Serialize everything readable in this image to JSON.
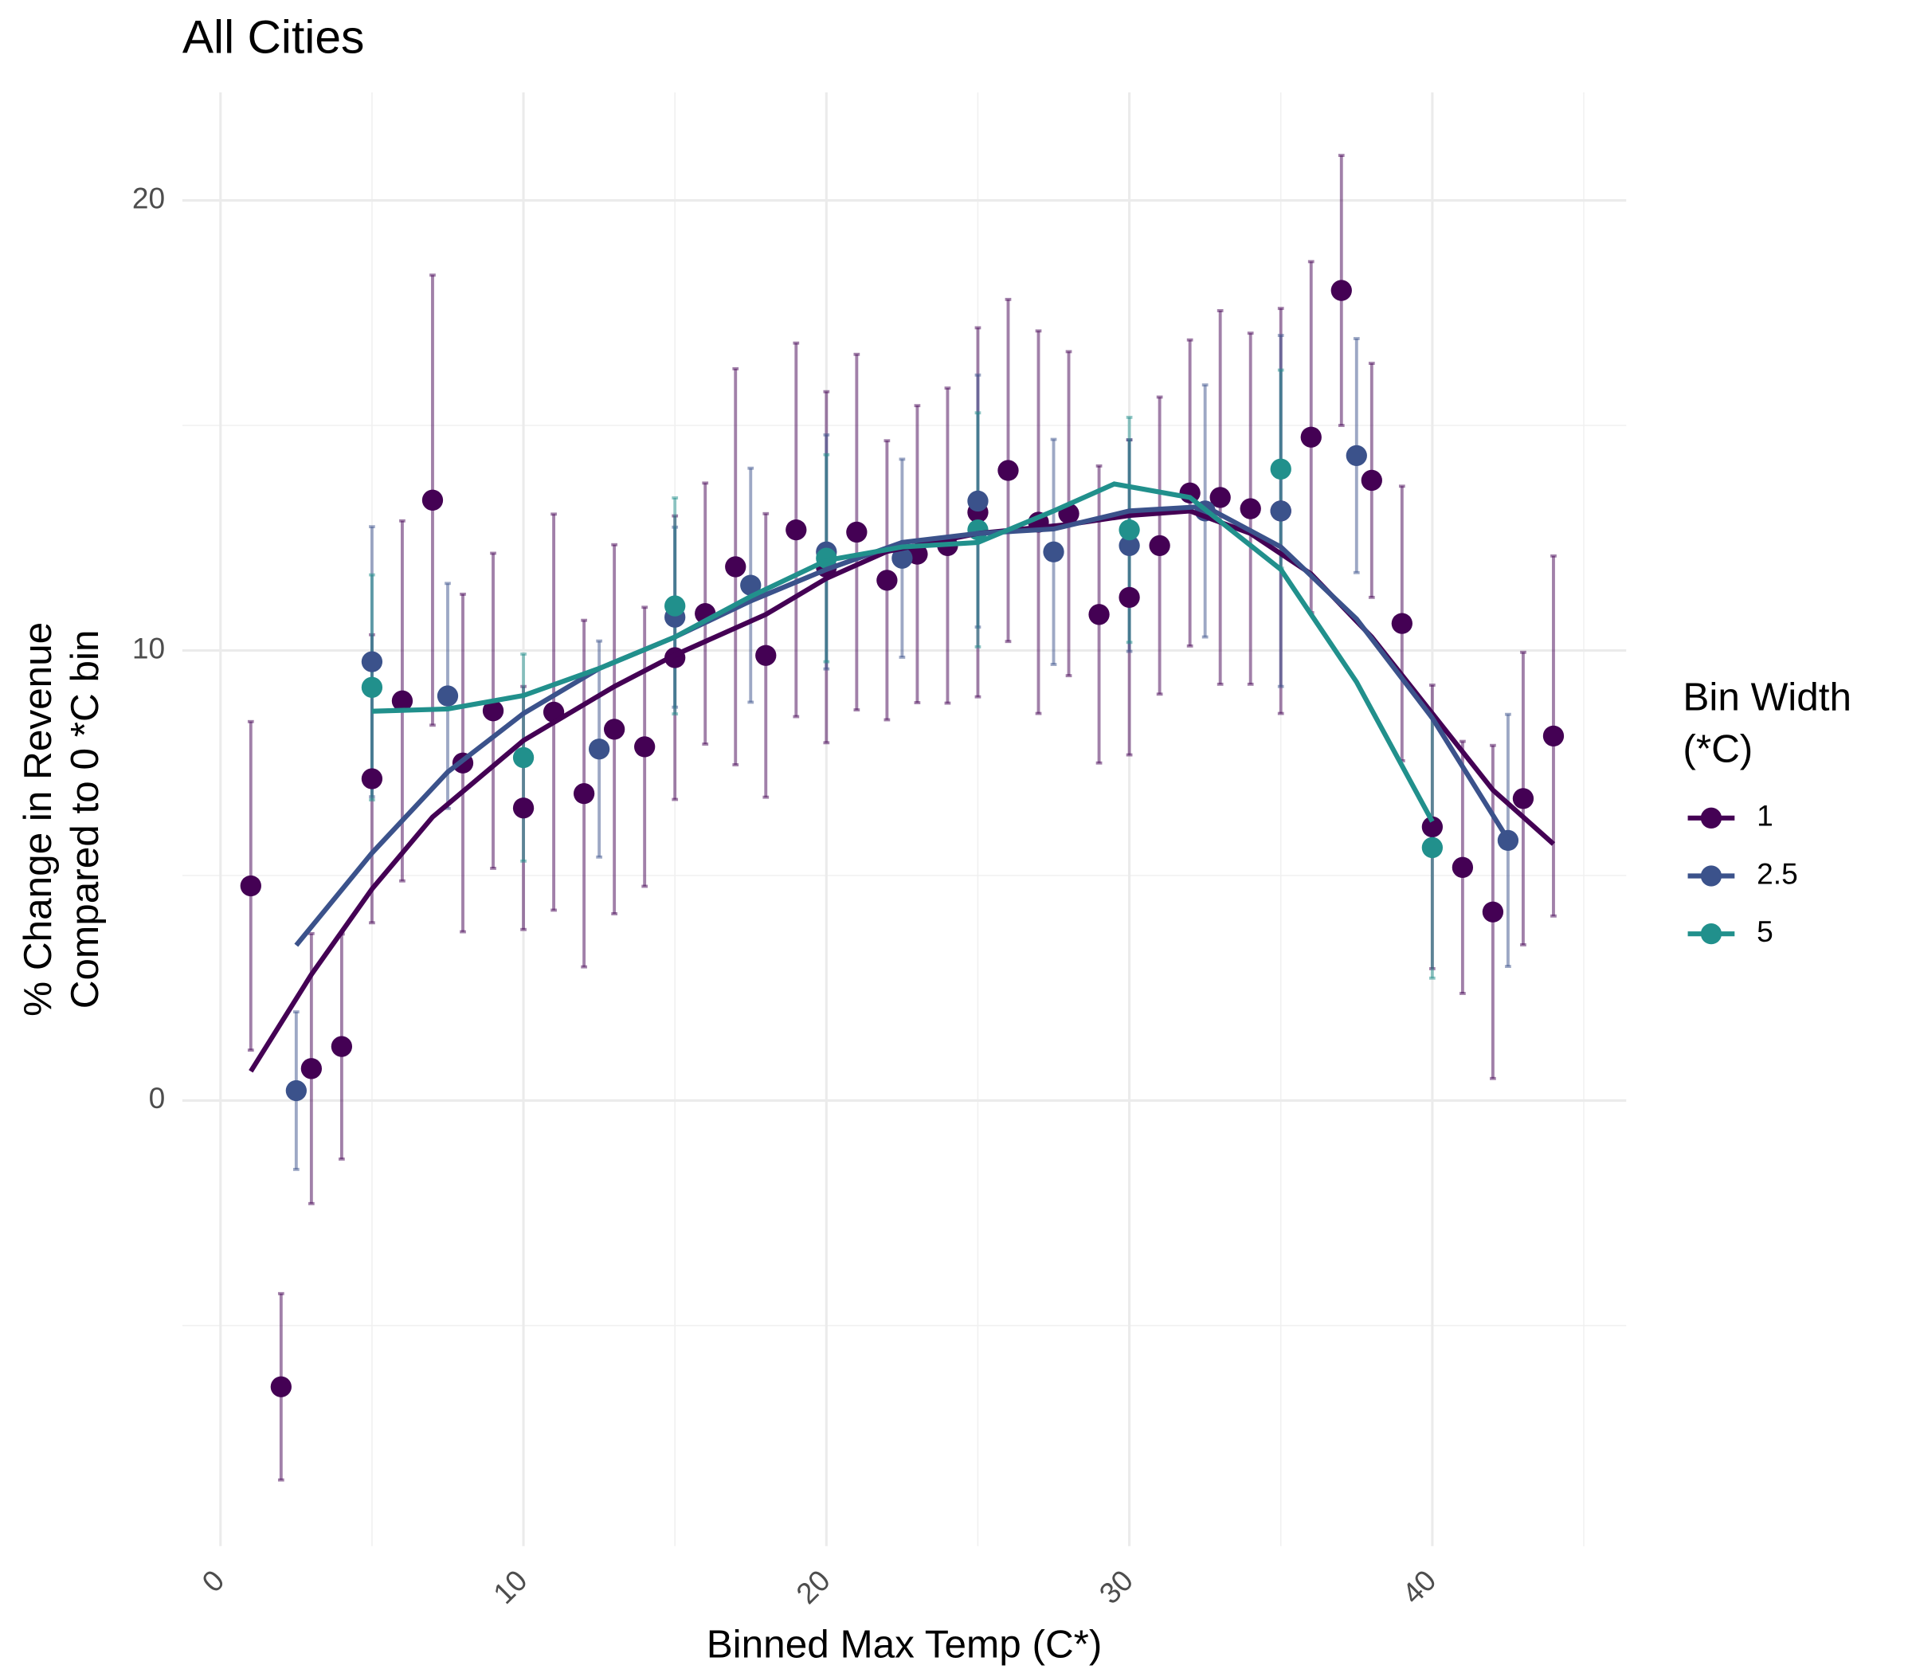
{
  "chart_data": {
    "type": "scatter",
    "title": "All Cities",
    "x_label": "Binned Max Temp (C*)",
    "y_label": [
      "% Change in Revenue",
      "Compared to 0 *C bin"
    ],
    "legend_title": [
      "Bin Width",
      "(*C)"
    ],
    "xlim": [
      -1.26,
      46.4
    ],
    "ylim": [
      -9.9,
      22.4
    ],
    "xticks": [
      0,
      10,
      20,
      30,
      40
    ],
    "yticks": [
      0,
      10,
      20
    ],
    "minor_xticks": [
      5,
      15,
      25,
      35,
      45
    ],
    "minor_yticks": [
      -5,
      5,
      15
    ],
    "grid": true,
    "series": [
      {
        "name": "1",
        "color": "#440154",
        "x": [
          1,
          2,
          3,
          4,
          5,
          6,
          7,
          8,
          9,
          10,
          11,
          12,
          13,
          14,
          15,
          16,
          17,
          18,
          19,
          20,
          21,
          22,
          23,
          24,
          25,
          26,
          27,
          28,
          29,
          30,
          31,
          32,
          33,
          34,
          35,
          36,
          37,
          38,
          39,
          40,
          41,
          42,
          43,
          44
        ],
        "values": [
          4.77,
          -6.36,
          0.71,
          1.2,
          7.15,
          8.88,
          13.34,
          7.5,
          8.66,
          6.5,
          8.63,
          6.82,
          8.25,
          7.86,
          9.84,
          10.82,
          11.86,
          9.89,
          12.68,
          11.85,
          12.63,
          11.56,
          12.14,
          12.33,
          13.07,
          14.0,
          12.85,
          13.04,
          10.8,
          11.18,
          12.33,
          13.5,
          13.4,
          13.15,
          13.1,
          14.74,
          18.0,
          13.78,
          10.6,
          6.08,
          5.18,
          4.19,
          6.71,
          8.1
        ],
        "errors": [
          3.65,
          2.07,
          3.0,
          2.5,
          3.2,
          4.0,
          5.0,
          3.75,
          3.5,
          2.7,
          4.4,
          3.85,
          4.1,
          3.1,
          3.15,
          2.9,
          4.4,
          3.15,
          4.15,
          3.9,
          3.95,
          3.1,
          3.3,
          3.5,
          4.1,
          3.8,
          4.25,
          3.6,
          3.3,
          3.5,
          3.3,
          3.4,
          4.15,
          3.9,
          4.5,
          3.9,
          3.0,
          2.6,
          3.05,
          3.15,
          2.8,
          3.7,
          3.25,
          4.0
        ],
        "smooth_x": [
          1,
          3,
          5,
          7,
          10,
          13,
          15,
          18,
          20,
          22,
          25,
          28,
          30,
          32,
          34,
          36,
          38,
          40,
          42,
          44
        ],
        "smooth_y": [
          0.65,
          2.8,
          4.7,
          6.3,
          8.0,
          9.2,
          9.9,
          10.8,
          11.6,
          12.2,
          12.6,
          12.8,
          13.0,
          13.1,
          12.6,
          11.7,
          10.3,
          8.6,
          6.9,
          5.7
        ]
      },
      {
        "name": "2.5",
        "color": "#3b528b",
        "x": [
          2.5,
          5,
          7.5,
          12.5,
          15,
          17.5,
          20,
          22.5,
          25,
          27.5,
          30,
          32.5,
          35,
          37.5,
          42.5
        ],
        "values": [
          0.22,
          9.75,
          8.99,
          7.81,
          10.74,
          11.45,
          12.19,
          12.05,
          13.32,
          12.19,
          12.33,
          13.1,
          13.1,
          14.33,
          5.78
        ],
        "errors": [
          1.75,
          3.0,
          2.5,
          2.4,
          2.0,
          2.6,
          2.6,
          2.2,
          2.8,
          2.5,
          2.35,
          2.8,
          3.9,
          2.6,
          2.8
        ],
        "smooth_x": [
          2.5,
          5,
          7.5,
          10,
          12.5,
          15,
          17.5,
          20,
          22.5,
          25,
          27.5,
          30,
          32.5,
          35,
          37.5,
          40,
          42.5
        ],
        "smooth_y": [
          3.45,
          5.5,
          7.3,
          8.6,
          9.6,
          10.3,
          11.1,
          11.8,
          12.4,
          12.6,
          12.7,
          13.1,
          13.2,
          12.3,
          10.7,
          8.5,
          5.8
        ]
      },
      {
        "name": "5",
        "color": "#21908c",
        "x": [
          5,
          10,
          15,
          20,
          25,
          30,
          35,
          40
        ],
        "values": [
          9.18,
          7.62,
          10.99,
          12.05,
          12.68,
          12.68,
          14.03,
          5.62
        ],
        "errors": [
          2.5,
          2.3,
          2.4,
          2.3,
          2.6,
          2.5,
          2.2,
          2.9
        ],
        "smooth_x": [
          5,
          7.5,
          10,
          12.5,
          15,
          17.5,
          20,
          22.5,
          25,
          27.5,
          29.5,
          32,
          35,
          37.5,
          40
        ],
        "smooth_y": [
          8.65,
          8.7,
          9.0,
          9.6,
          10.3,
          11.2,
          12.0,
          12.3,
          12.4,
          13.1,
          13.7,
          13.4,
          11.8,
          9.3,
          6.2
        ]
      }
    ]
  }
}
